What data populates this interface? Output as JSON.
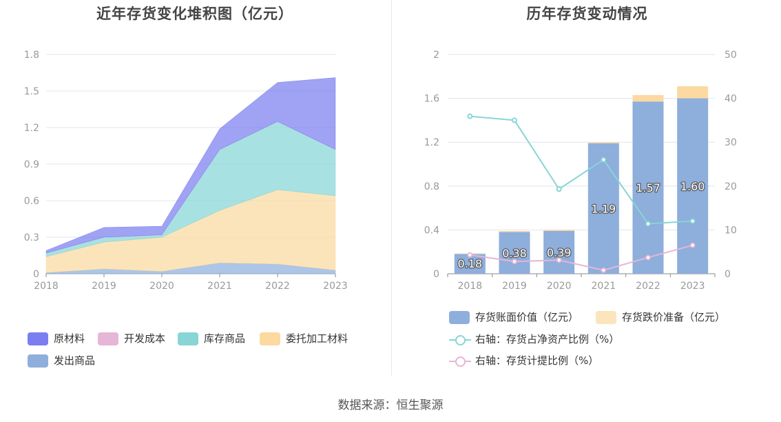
{
  "source_text": "数据来源：恒生聚源",
  "chart_data": [
    {
      "type": "area",
      "title": "近年存货变化堆积图（亿元）",
      "x": [
        "2018",
        "2019",
        "2020",
        "2021",
        "2022",
        "2023"
      ],
      "yticks": [
        "0",
        "0.3",
        "0.6",
        "0.9",
        "1.2",
        "1.5",
        "1.8"
      ],
      "ylim": [
        0,
        1.8
      ],
      "stacked": true,
      "series": [
        {
          "name": "发出商品",
          "color": "#8eaedc",
          "values": [
            0.01,
            0.04,
            0.02,
            0.09,
            0.08,
            0.03
          ]
        },
        {
          "name": "委托加工材料",
          "color": "#fbd9a0",
          "values": [
            0.13,
            0.22,
            0.28,
            0.43,
            0.61,
            0.61
          ]
        },
        {
          "name": "库存商品",
          "color": "#87d5d5",
          "values": [
            0.03,
            0.04,
            0.02,
            0.5,
            0.56,
            0.38
          ]
        },
        {
          "name": "开发成本",
          "color": "#e6b6d6",
          "values": [
            0,
            0,
            0,
            0,
            0,
            0
          ]
        },
        {
          "name": "原材料",
          "color": "#7b7ef0",
          "values": [
            0.02,
            0.08,
            0.07,
            0.17,
            0.32,
            0.59
          ]
        }
      ],
      "legend_order": [
        "原材料",
        "开发成本",
        "库存商品",
        "委托加工材料",
        "发出商品"
      ],
      "legend_position": "bottom",
      "grid": true
    },
    {
      "type": "bar",
      "title": "历年存货变动情况",
      "x": [
        "2018",
        "2019",
        "2020",
        "2021",
        "2022",
        "2023"
      ],
      "yticks_left": [
        "0",
        "0.4",
        "0.8",
        "1.2",
        "1.6",
        "2"
      ],
      "ylim_left": [
        0,
        2
      ],
      "yticks_right": [
        "0",
        "10",
        "20",
        "30",
        "40",
        "50"
      ],
      "ylim_right": [
        0,
        50
      ],
      "bar_series": [
        {
          "name": "存货账面价值（亿元）",
          "color": "#8eaedc",
          "values": [
            0.18,
            0.38,
            0.39,
            1.19,
            1.57,
            1.6
          ],
          "labels": [
            "0.18",
            "0.38",
            "0.39",
            "1.19",
            "1.57",
            "1.60"
          ]
        },
        {
          "name": "存货跌价准备（亿元）",
          "color": "#fbd9a0",
          "values": [
            0.005,
            0.01,
            0.01,
            0.01,
            0.06,
            0.11
          ]
        }
      ],
      "line_series": [
        {
          "name": "右轴：存货占净资产比例（%）",
          "color": "#87d5d5",
          "values": [
            35.9,
            35.0,
            19.3,
            26.0,
            11.4,
            12.0
          ]
        },
        {
          "name": "右轴：存货计提比例（%）",
          "color": "#e6b6d6",
          "values": [
            4.3,
            2.8,
            3.1,
            0.8,
            3.7,
            6.5
          ]
        }
      ],
      "legend_position": "bottom",
      "grid": true
    }
  ]
}
